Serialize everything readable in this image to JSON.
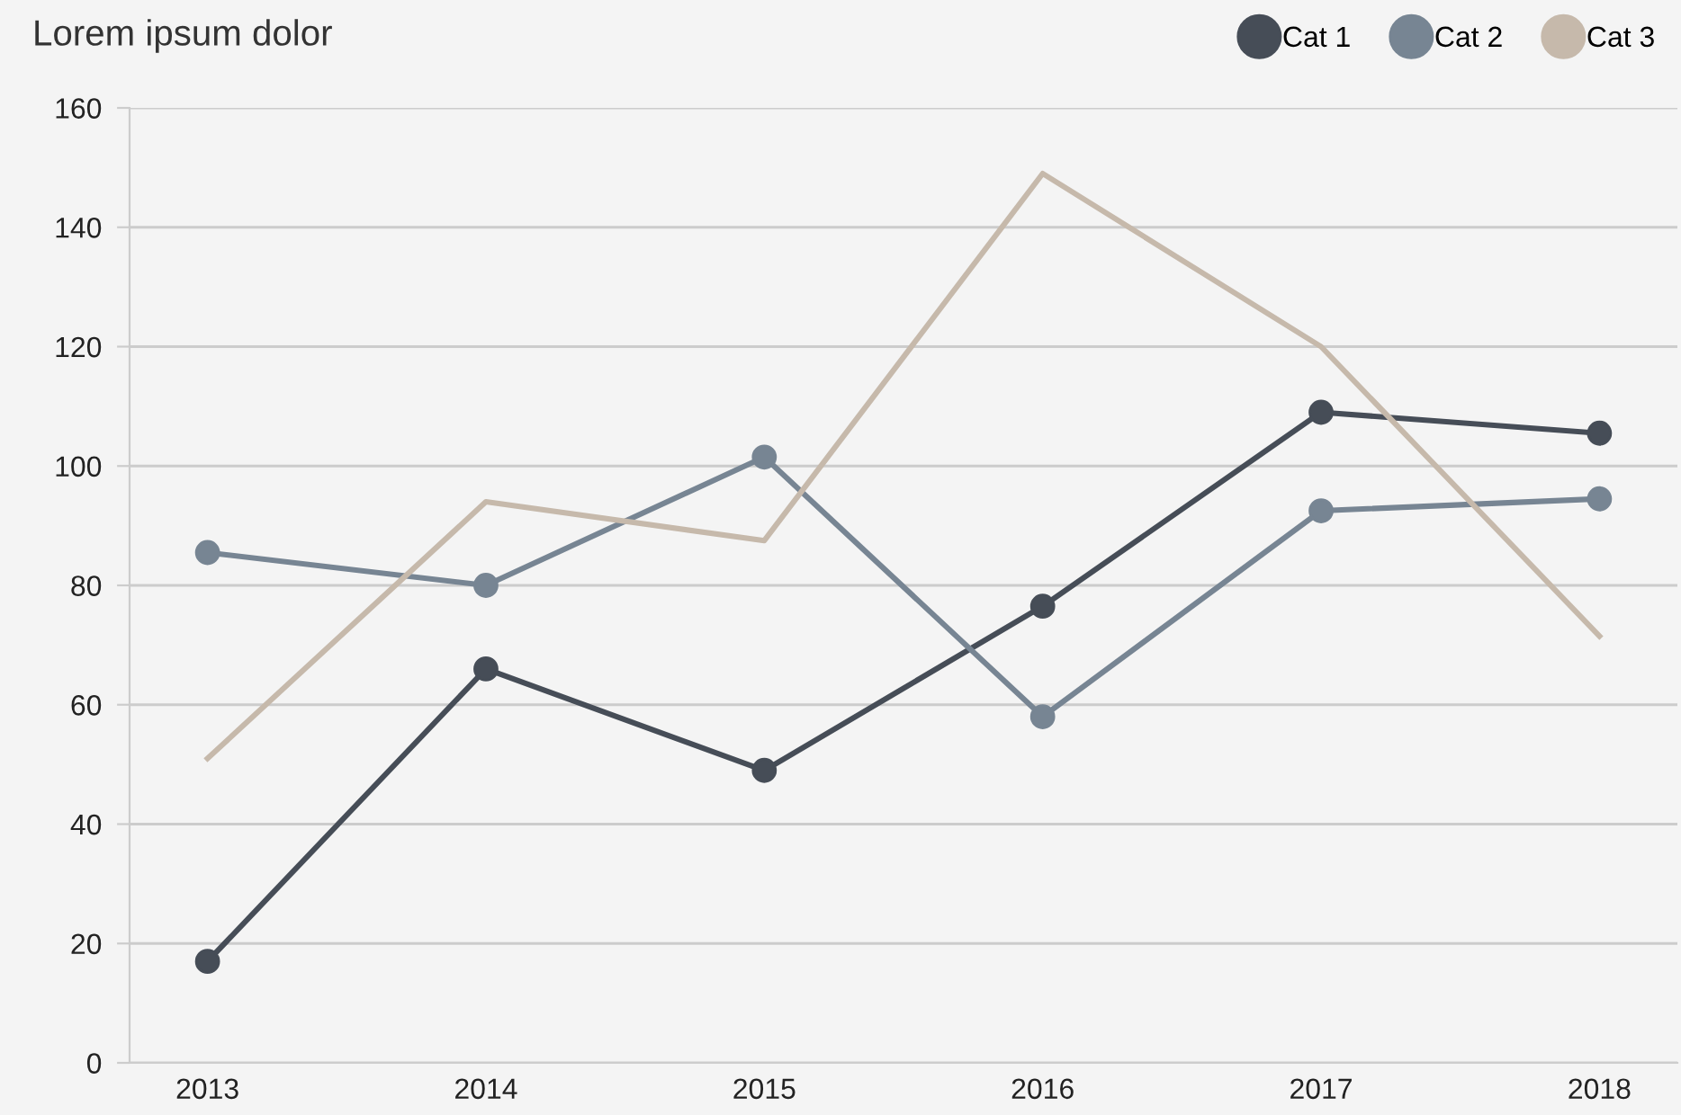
{
  "chart_data": {
    "type": "line",
    "title": "Lorem ipsum dolor",
    "categories": [
      "2013",
      "2014",
      "2015",
      "2016",
      "2017",
      "2018"
    ],
    "series": [
      {
        "name": "Cat 1",
        "color": "#464d57",
        "marker": "circle",
        "values": [
          17,
          66,
          49,
          76.5,
          109,
          105.5
        ]
      },
      {
        "name": "Cat 2",
        "color": "#778593",
        "marker": "circle",
        "values": [
          85.5,
          80,
          101.5,
          58,
          92.5,
          94.5
        ]
      },
      {
        "name": "Cat 3",
        "color": "#c6b9ab",
        "marker": "none",
        "values": [
          51,
          94,
          87.5,
          149,
          120,
          71.5
        ]
      }
    ],
    "ylim": [
      0,
      160
    ],
    "yticks": [
      0,
      20,
      40,
      60,
      80,
      100,
      120,
      140,
      160
    ],
    "grid": "y",
    "legend": "top right",
    "line_style": "solid"
  }
}
